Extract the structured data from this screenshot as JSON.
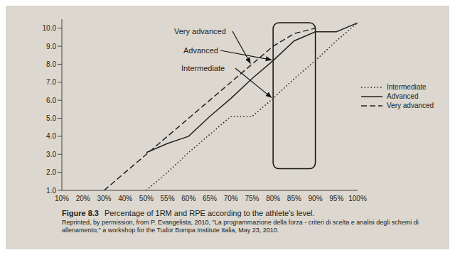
{
  "chart_data": {
    "type": "line",
    "title": "Figure 8.3",
    "subtitle": "Percentage of 1RM and RPE according to the athlete's level.",
    "source": "Reprinted, by permission, from P. Evangelista, 2010, \"La programmazione della forza - criteri di scelta e analisi degli schemi di allenamento,\" a workshop for the Tudor Bompa Institute Italia, May 23, 2010.",
    "categories": [
      "10%",
      "20%",
      "30%",
      "40%",
      "50%",
      "55%",
      "60%",
      "65%",
      "70%",
      "75%",
      "80%",
      "85%",
      "90%",
      "95%",
      "100%"
    ],
    "series": [
      {
        "name": "Intermediate",
        "color": "#222222",
        "line_style": "dotted",
        "values": [
          null,
          null,
          null,
          null,
          1.0,
          2.0,
          3.1,
          4.1,
          5.1,
          5.1,
          6.1,
          7.2,
          8.2,
          9.3,
          10.3
        ]
      },
      {
        "name": "Advanced",
        "color": "#222222",
        "line_style": "solid",
        "values": [
          null,
          null,
          null,
          null,
          3.1,
          3.6,
          4.0,
          5.1,
          6.1,
          7.2,
          8.2,
          9.3,
          9.8,
          9.8,
          10.3
        ]
      },
      {
        "name": "Very advanced",
        "color": "#222222",
        "line_style": "dashed",
        "values": [
          null,
          null,
          1.0,
          2.0,
          3.0,
          4.0,
          5.0,
          6.0,
          7.0,
          8.0,
          9.0,
          9.7,
          10.0,
          null,
          null
        ]
      }
    ],
    "ylim": [
      1,
      10.5
    ],
    "yticks": [
      {
        "value": 1,
        "label": "1.0"
      },
      {
        "value": 2,
        "label": "2.0"
      },
      {
        "value": 3,
        "label": "3.0"
      },
      {
        "value": 4,
        "label": "4.0"
      },
      {
        "value": 5,
        "label": "5.0"
      },
      {
        "value": 6,
        "label": "6.0"
      },
      {
        "value": 7,
        "label": "7.0"
      },
      {
        "value": 8,
        "label": "8.0"
      },
      {
        "value": 9,
        "label": "9.0"
      },
      {
        "value": 10,
        "label": "10.0"
      }
    ],
    "annotations": [
      "Very advanced",
      "Advanced",
      "Intermediate"
    ],
    "highlight": {
      "x": [
        "80%",
        "90%"
      ],
      "y": [
        2.2,
        10.3
      ]
    },
    "legend": "right",
    "grid": false
  }
}
